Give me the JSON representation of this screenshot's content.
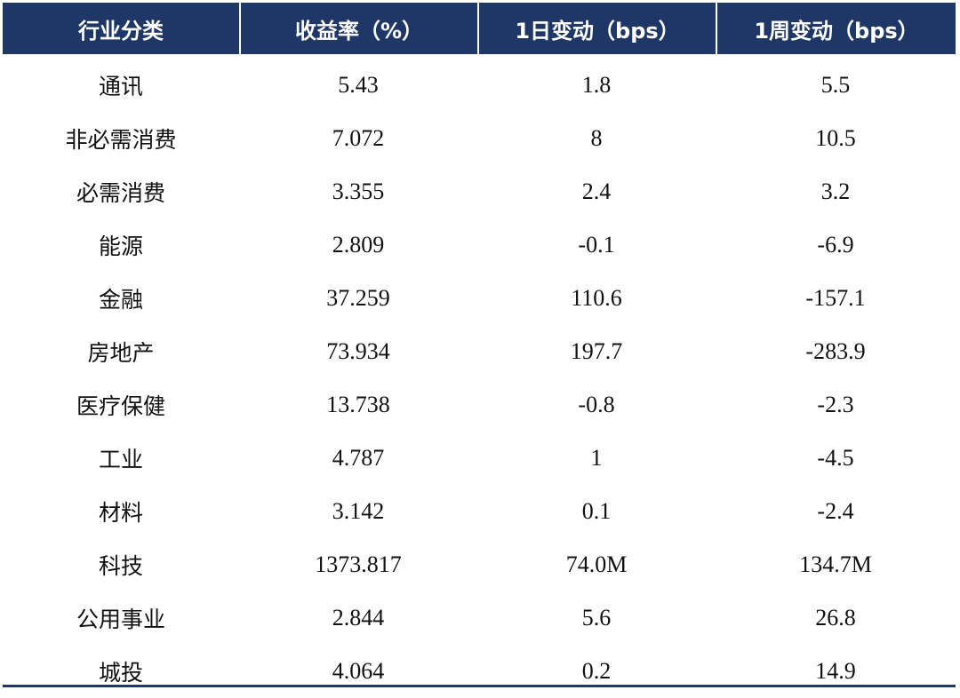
{
  "table": {
    "headers": [
      "行业分类",
      "收益率（%）",
      "1日变动（bps）",
      "1周变动（bps）"
    ],
    "rows": [
      {
        "sector": "通讯",
        "yield": "5.43",
        "d1": "1.8",
        "w1": "5.5"
      },
      {
        "sector": "非必需消费",
        "yield": "7.072",
        "d1": "8",
        "w1": "10.5"
      },
      {
        "sector": "必需消费",
        "yield": "3.355",
        "d1": "2.4",
        "w1": "3.2"
      },
      {
        "sector": "能源",
        "yield": "2.809",
        "d1": "-0.1",
        "w1": "-6.9"
      },
      {
        "sector": "金融",
        "yield": "37.259",
        "d1": "110.6",
        "w1": "-157.1"
      },
      {
        "sector": "房地产",
        "yield": "73.934",
        "d1": "197.7",
        "w1": "-283.9"
      },
      {
        "sector": "医疗保健",
        "yield": "13.738",
        "d1": "-0.8",
        "w1": "-2.3"
      },
      {
        "sector": "工业",
        "yield": "4.787",
        "d1": "1",
        "w1": "-4.5"
      },
      {
        "sector": "材料",
        "yield": "3.142",
        "d1": "0.1",
        "w1": "-2.4"
      },
      {
        "sector": "科技",
        "yield": "1373.817",
        "d1": "74.0M",
        "w1": "134.7M"
      },
      {
        "sector": "公用事业",
        "yield": "2.844",
        "d1": "5.6",
        "w1": "26.8"
      },
      {
        "sector": "城投",
        "yield": "4.064",
        "d1": "0.2",
        "w1": "14.9"
      }
    ]
  },
  "colors": {
    "header_bg": "#1f3766",
    "header_text": "#ffffff",
    "body_text": "#111111"
  }
}
